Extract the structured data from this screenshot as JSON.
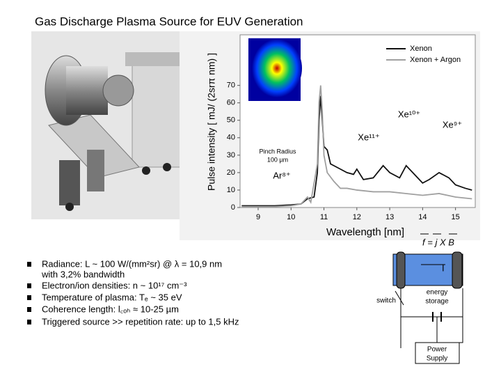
{
  "title": "Gas Discharge Plasma Source for EUV Generation",
  "chart_data": {
    "type": "line",
    "x_label": "Wavelength [nm]",
    "y_label": "Pulse intensity [ mJ/ (2srπ nm) ]",
    "xlim": [
      8.45,
      15.6
    ],
    "xticks": [
      9,
      10,
      11,
      12,
      13,
      14,
      15
    ],
    "ylim": [
      0,
      99
    ],
    "yticks": [
      0,
      10,
      20,
      30,
      40,
      50,
      60,
      70
    ],
    "legend": "upper right",
    "series": [
      {
        "name": "Xenon",
        "color": "#111111",
        "x": [
          8.5,
          9,
          9.5,
          10,
          10.3,
          10.5,
          10.7,
          10.8,
          10.85,
          10.9,
          10.95,
          11.0,
          11.1,
          11.2,
          11.3,
          11.5,
          11.7,
          11.9,
          12.0,
          12.2,
          12.5,
          12.8,
          13.0,
          13.3,
          13.5,
          13.7,
          14.0,
          14.2,
          14.5,
          14.8,
          15.0,
          15.3,
          15.5
        ],
        "values": [
          1,
          1,
          1,
          1.5,
          2,
          5,
          6,
          20,
          50,
          64,
          50,
          35,
          33,
          25,
          24,
          22,
          20,
          19,
          22,
          16,
          17,
          24,
          20,
          17,
          24,
          20,
          14,
          16,
          20,
          17,
          13,
          11,
          10
        ]
      },
      {
        "name": "Xenon + Argon",
        "color": "#a0a0a0",
        "x": [
          8.5,
          9,
          9.5,
          10,
          10.3,
          10.5,
          10.6,
          10.8,
          10.85,
          10.9,
          10.95,
          11.0,
          11.1,
          11.3,
          11.5,
          11.7,
          12,
          12.5,
          13,
          13.5,
          14,
          14.5,
          15,
          15.5
        ],
        "values": [
          0.5,
          0.5,
          0.5,
          1,
          2,
          6,
          3,
          25,
          60,
          70,
          55,
          30,
          20,
          15,
          11,
          11,
          10,
          9,
          9,
          8,
          7,
          8,
          6,
          5
        ]
      }
    ],
    "annotations": [
      "Xe¹⁰⁺",
      "Xe⁹⁺",
      "Xe¹¹⁺",
      "Ar⁸⁺",
      "Pinch Radius",
      "100 µm"
    ]
  },
  "bullets": [
    "Radiance: L ~ 100 W/(mm²sr) @ λ = 10,9 nm",
    "with 3,2% bandwidth",
    "Electron/ion densities: n ~ 10¹⁷ cm⁻³",
    "Temperature of plasma:  Tₑ ~ 35 eV",
    "Coherence length: l꜀ₒₕ ≈ 10-25 µm",
    "Triggered source >> repetition rate: up to 1,5 kHz"
  ],
  "diagram": {
    "formula": "f = j X B",
    "current": "I",
    "switch": "switch",
    "storage": [
      "energy",
      "storage"
    ],
    "supply": [
      "Power",
      "Supply"
    ]
  }
}
